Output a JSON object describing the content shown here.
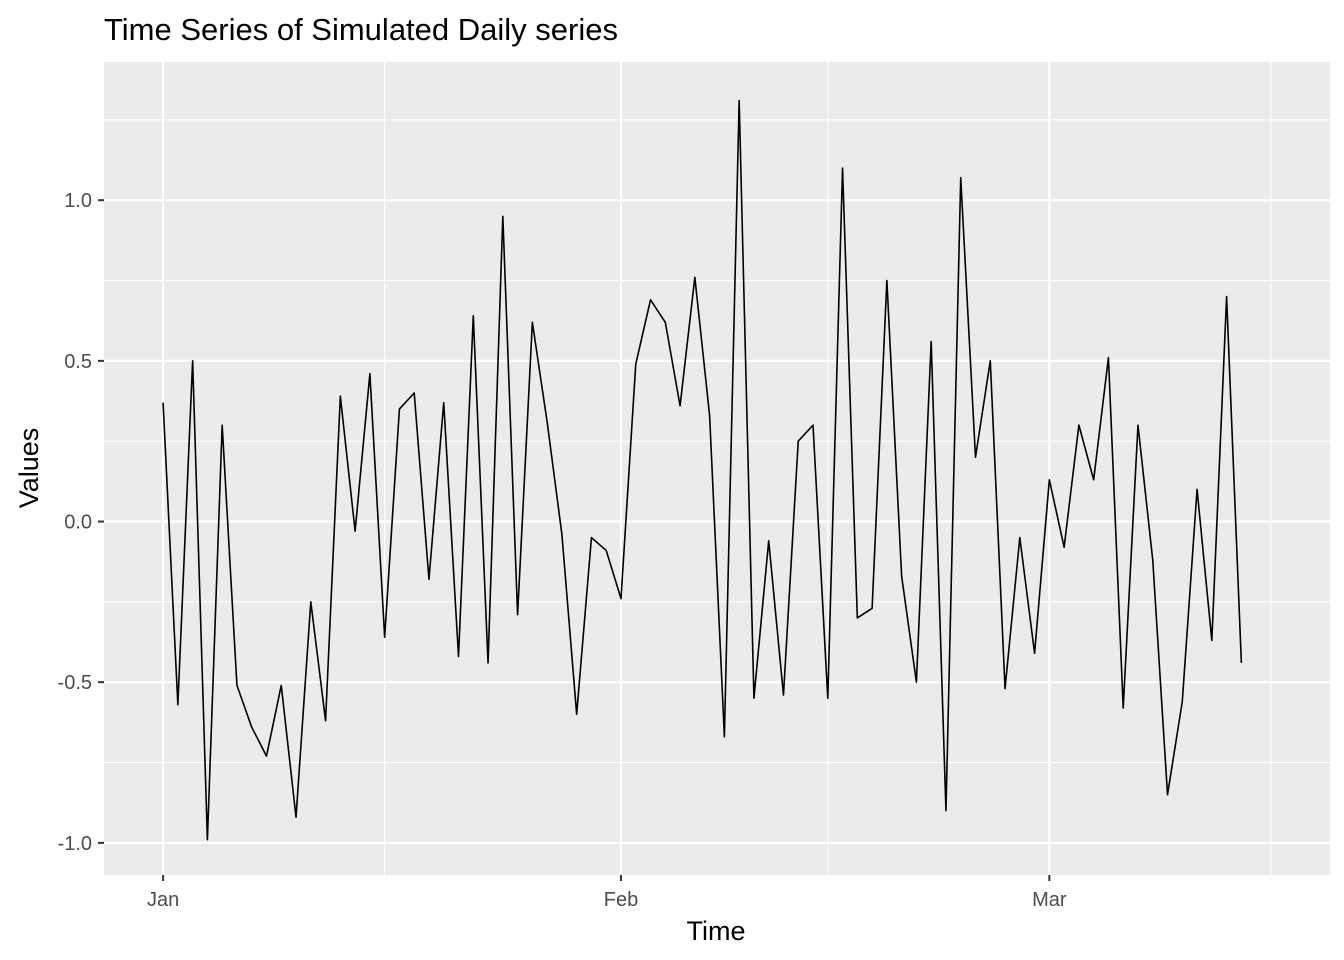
{
  "chart_data": {
    "type": "line",
    "title": "Time Series of Simulated Daily series",
    "xlabel": "Time",
    "ylabel": "Values",
    "x_start": "2024-01-01",
    "x_ticks": [
      {
        "label": "Jan",
        "date": "2024-01-01"
      },
      {
        "label": "Feb",
        "date": "2024-02-01"
      },
      {
        "label": "Mar",
        "date": "2024-03-01"
      }
    ],
    "x_minor_dates": [
      "2024-01-16",
      "2024-02-15",
      "2024-03-16"
    ],
    "xlim": [
      "2023-12-28",
      "2024-03-20"
    ],
    "y_ticks": [
      -1.0,
      -0.5,
      0.0,
      0.5,
      1.0
    ],
    "y_tick_labels": [
      "-1.0",
      "-0.5",
      "0.0",
      "0.5",
      "1.0"
    ],
    "ylim": [
      -1.1,
      1.43
    ],
    "grid": true,
    "colors": {
      "panel": "#ebebeb",
      "grid": "#ffffff",
      "line": "#000000",
      "tick_text": "#4d4d4d"
    },
    "series": [
      {
        "values": [
          0.37,
          -0.57,
          0.5,
          -0.99,
          0.3,
          -0.51,
          -0.64,
          -0.73,
          -0.51,
          -0.92,
          -0.25,
          -0.62,
          0.39,
          -0.03,
          0.46,
          -0.36,
          0.35,
          0.4,
          -0.18,
          0.37,
          -0.42,
          0.64,
          -0.44,
          0.95,
          -0.29,
          0.62,
          0.31,
          -0.04,
          -0.6,
          -0.05,
          -0.09,
          -0.24,
          0.49,
          0.69,
          0.62,
          0.36,
          0.76,
          0.33,
          -0.67,
          1.31,
          -0.55,
          -0.06,
          -0.54,
          0.25,
          0.3,
          -0.55,
          1.1,
          -0.3,
          -0.27,
          0.75,
          -0.17,
          -0.5,
          0.56,
          -0.9,
          1.07,
          0.2,
          0.5,
          -0.52,
          -0.05,
          -0.41,
          0.13,
          -0.08,
          0.3,
          0.13,
          0.51,
          -0.58,
          0.3,
          -0.12,
          -0.85,
          -0.56,
          0.1,
          -0.37,
          0.7,
          -0.44
        ]
      }
    ]
  }
}
